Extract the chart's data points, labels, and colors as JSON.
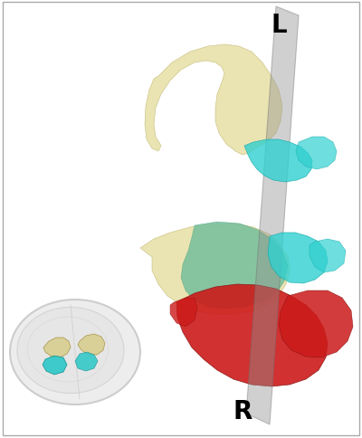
{
  "background_color": "#ffffff",
  "border_color": "#aaaaaa",
  "label_L": "L",
  "label_R": "R",
  "label_fontsize": 20,
  "hippocampus_color": "#e8e0a8",
  "hippocampus_alpha": 0.88,
  "cyan_color": "#30d0d0",
  "cyan_alpha": 0.8,
  "teal_color": "#60b898",
  "teal_alpha": 0.72,
  "red_color": "#cc1a1a",
  "red_alpha": 0.9,
  "plane_color": "#909090",
  "plane_alpha": 0.42,
  "brain_color": "#e8e8e8",
  "brain_edge": "#c0c0c0"
}
